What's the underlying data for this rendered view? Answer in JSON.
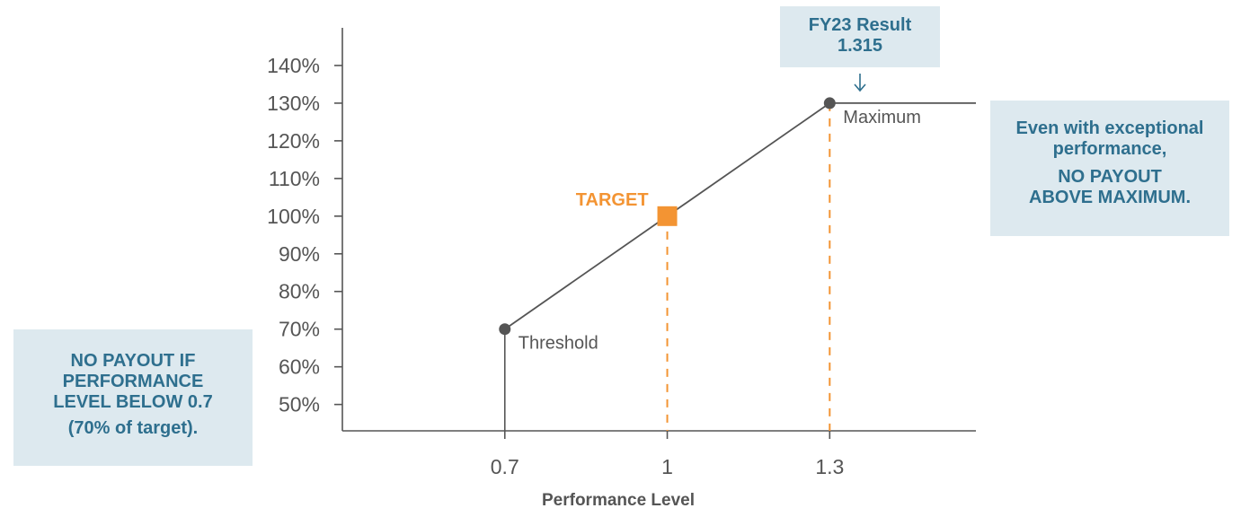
{
  "chart_data": {
    "type": "line",
    "xlabel": "Performance Level",
    "ylabel": "",
    "x_ticks": [
      "0.7",
      "1",
      "1.3"
    ],
    "y_ticks": [
      "50%",
      "60%",
      "70%",
      "80%",
      "90%",
      "100%",
      "110%",
      "120%",
      "130%",
      "140%"
    ],
    "xlim": [
      0.4,
      1.57
    ],
    "ylim": [
      43,
      150
    ],
    "series": [
      {
        "values": [
          {
            "x": 0.7,
            "y": 70
          },
          {
            "x": 1.0,
            "y": 100
          },
          {
            "x": 1.3,
            "y": 130
          },
          {
            "x": 1.57,
            "y": 130
          }
        ]
      }
    ],
    "points": [
      {
        "label": "Threshold",
        "x": 0.7,
        "y": 70,
        "marker": "circle"
      },
      {
        "label": "TARGET",
        "x": 1.0,
        "y": 100,
        "marker": "square",
        "color": "#f39433"
      },
      {
        "label": "Maximum",
        "x": 1.3,
        "y": 130,
        "marker": "circle"
      }
    ],
    "colors": {
      "line": "#555555",
      "accent": "#f39433",
      "callout_bg": "#dde9ef",
      "callout_text": "#2e6f8e"
    }
  },
  "callouts": {
    "left": {
      "line1": "NO PAYOUT IF",
      "line2": "PERFORMANCE",
      "line3": "LEVEL BELOW 0.7",
      "line4": "(70% of target)."
    },
    "right": {
      "line1": "Even with exceptional",
      "line2": "performance,",
      "line3": "NO PAYOUT",
      "line4": "ABOVE MAXIMUM."
    },
    "top": {
      "line1": "FY23 Result",
      "line2": "1.315"
    }
  }
}
